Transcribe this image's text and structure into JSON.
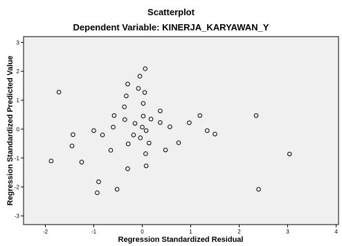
{
  "chart_data": {
    "type": "scatter",
    "title": "Scatterplot",
    "subtitle": "Dependent Variable: KINERJA_KARYAWAN_Y",
    "xlabel": "Regression Standardized Residual",
    "ylabel": "Regression Standardized Predicted Value",
    "xlim": [
      -2.45,
      4.05
    ],
    "ylim": [
      -3.3,
      3.2
    ],
    "xticks": [
      -2,
      -1,
      0,
      1,
      2,
      3,
      4
    ],
    "yticks": [
      -3,
      -2,
      -1,
      0,
      1,
      2,
      3
    ],
    "grid": false,
    "colors": {
      "plot_bg": "#f0f0f0",
      "page_bg": "#ffffff",
      "marker": "#000000"
    },
    "points": [
      {
        "x": -1.72,
        "y": 1.28
      },
      {
        "x": -1.88,
        "y": -1.1
      },
      {
        "x": -1.43,
        "y": -0.19
      },
      {
        "x": -1.45,
        "y": -0.58
      },
      {
        "x": -1.25,
        "y": -1.14
      },
      {
        "x": -1.0,
        "y": -0.05
      },
      {
        "x": -0.82,
        "y": -0.2
      },
      {
        "x": -0.9,
        "y": -1.82
      },
      {
        "x": -0.93,
        "y": -2.2
      },
      {
        "x": -0.65,
        "y": -0.73
      },
      {
        "x": -0.6,
        "y": 0.07
      },
      {
        "x": -0.58,
        "y": 0.47
      },
      {
        "x": -0.52,
        "y": -2.08
      },
      {
        "x": -0.36,
        "y": 0.33
      },
      {
        "x": -0.37,
        "y": 0.77
      },
      {
        "x": -0.33,
        "y": 1.15
      },
      {
        "x": -0.3,
        "y": 1.56
      },
      {
        "x": -0.29,
        "y": -0.51
      },
      {
        "x": -0.3,
        "y": -1.37
      },
      {
        "x": -0.18,
        "y": -0.2
      },
      {
        "x": -0.15,
        "y": 0.2
      },
      {
        "x": -0.08,
        "y": 1.41
      },
      {
        "x": -0.05,
        "y": 1.83
      },
      {
        "x": -0.04,
        "y": -0.3
      },
      {
        "x": 0.0,
        "y": 0.07
      },
      {
        "x": 0.02,
        "y": 0.45
      },
      {
        "x": 0.02,
        "y": 0.89
      },
      {
        "x": 0.05,
        "y": 1.27
      },
      {
        "x": 0.06,
        "y": 2.09
      },
      {
        "x": 0.08,
        "y": -0.05
      },
      {
        "x": 0.07,
        "y": -0.85
      },
      {
        "x": 0.08,
        "y": -1.27
      },
      {
        "x": 0.14,
        "y": -0.48
      },
      {
        "x": 0.18,
        "y": 0.35
      },
      {
        "x": 0.37,
        "y": 0.23
      },
      {
        "x": 0.37,
        "y": 0.63
      },
      {
        "x": 0.48,
        "y": -0.72
      },
      {
        "x": 0.57,
        "y": 0.08
      },
      {
        "x": 0.75,
        "y": -0.47
      },
      {
        "x": 0.97,
        "y": 0.22
      },
      {
        "x": 1.19,
        "y": 0.47
      },
      {
        "x": 1.34,
        "y": -0.05
      },
      {
        "x": 1.5,
        "y": -0.17
      },
      {
        "x": 2.35,
        "y": 0.47
      },
      {
        "x": 2.4,
        "y": -2.08
      },
      {
        "x": 3.04,
        "y": -0.86
      }
    ]
  }
}
